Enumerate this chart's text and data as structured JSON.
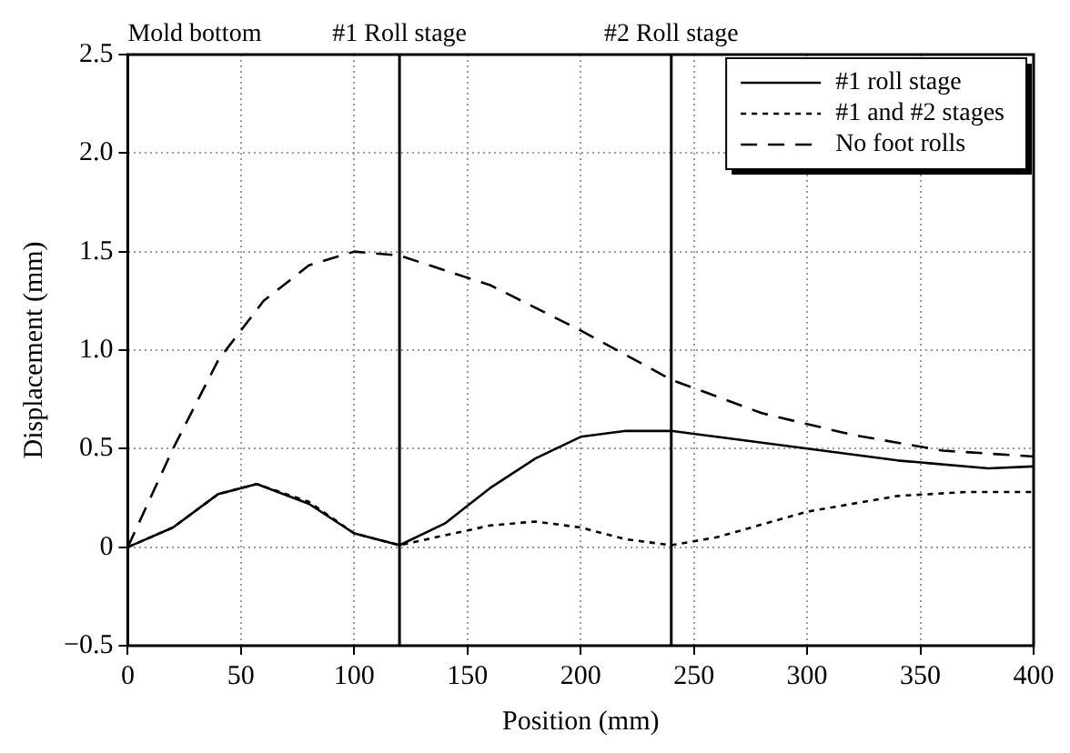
{
  "chart_data": {
    "type": "line",
    "xlabel": "Position (mm)",
    "ylabel": "Displacement (mm)",
    "xlim": [
      0,
      400
    ],
    "xticks": [
      0,
      50,
      100,
      150,
      200,
      250,
      300,
      350,
      400
    ],
    "ylim": [
      -0.5,
      2.5
    ],
    "yticks": [
      {
        "value": -0.5,
        "label": "−0.5"
      },
      {
        "value": 0,
        "label": "0"
      },
      {
        "value": 0.5,
        "label": "0.5"
      },
      {
        "value": 1,
        "label": "1.0"
      },
      {
        "value": 1.5,
        "label": "1.5"
      },
      {
        "value": 2,
        "label": "2.0"
      },
      {
        "value": 2.5,
        "label": "2.5"
      }
    ],
    "grid": true,
    "legend": "top right",
    "marker": "none",
    "ref_lines": [
      {
        "axis": "x",
        "value": 0,
        "label": "Mold bottom",
        "color": "#000000"
      },
      {
        "axis": "x",
        "value": 120,
        "label": "#1 Roll stage",
        "color": "#000000"
      },
      {
        "axis": "x",
        "value": 240,
        "label": "#2 Roll stage",
        "color": "#000000"
      }
    ],
    "series": [
      {
        "name": "#1 roll stage",
        "color": "#000000",
        "line_style": "solid",
        "x": [
          0,
          20,
          40,
          57,
          80,
          100,
          120,
          140,
          160,
          180,
          200,
          220,
          240,
          260,
          300,
          340,
          380,
          400
        ],
        "values": [
          0,
          0.1,
          0.27,
          0.32,
          0.22,
          0.07,
          0.01,
          0.12,
          0.3,
          0.45,
          0.56,
          0.59,
          0.59,
          0.56,
          0.5,
          0.44,
          0.4,
          0.41
        ]
      },
      {
        "name": "#1 and #2 stages",
        "color": "#000000",
        "line_style": "dotted",
        "x": [
          0,
          20,
          40,
          57,
          80,
          100,
          120,
          140,
          160,
          180,
          200,
          220,
          240,
          260,
          300,
          340,
          370,
          400
        ],
        "values": [
          0,
          0.1,
          0.27,
          0.32,
          0.23,
          0.07,
          0.01,
          0.06,
          0.11,
          0.13,
          0.1,
          0.04,
          0.01,
          0.05,
          0.18,
          0.26,
          0.28,
          0.28
        ]
      },
      {
        "name": "No foot rolls",
        "color": "#000000",
        "line_style": "dashed",
        "x": [
          0,
          20,
          40,
          60,
          80,
          100,
          120,
          160,
          200,
          240,
          280,
          320,
          360,
          400
        ],
        "values": [
          0,
          0.5,
          0.95,
          1.25,
          1.43,
          1.5,
          1.48,
          1.33,
          1.1,
          0.85,
          0.68,
          0.57,
          0.49,
          0.46
        ]
      }
    ]
  }
}
